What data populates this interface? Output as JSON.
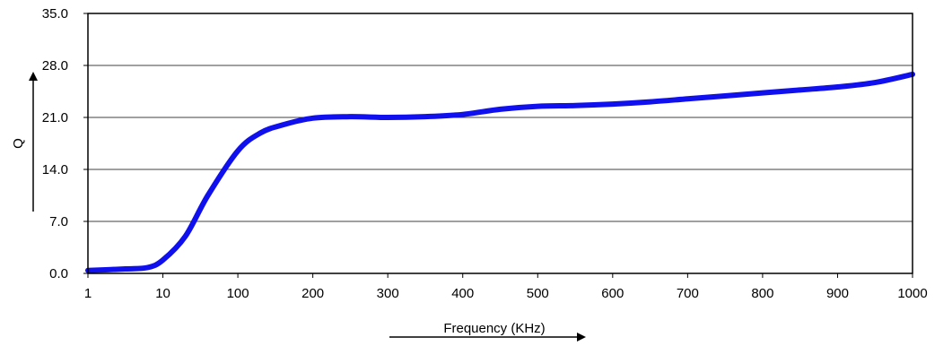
{
  "chart_data": {
    "type": "line",
    "title": "",
    "xlabel": "Frequency (KHz)",
    "ylabel": "Q",
    "x_categories": [
      "1",
      "10",
      "100",
      "200",
      "300",
      "400",
      "500",
      "600",
      "700",
      "800",
      "900",
      "1000"
    ],
    "y_ticks": [
      "0.0",
      "7.0",
      "14.0",
      "21.0",
      "28.0",
      "35.0"
    ],
    "ylim": [
      0,
      35
    ],
    "grid": "horizontal",
    "legend": "none",
    "series": [
      {
        "color": "#1010ee",
        "x_index": [
          0,
          0.5,
          0.8,
          1.0,
          1.3,
          1.6,
          2.0,
          2.3,
          2.6,
          3.0,
          3.5,
          4.0,
          4.5,
          5.0,
          5.5,
          6.0,
          6.5,
          7.0,
          7.5,
          8.0,
          8.5,
          9.0,
          9.5,
          10.0,
          10.5,
          11.0
        ],
        "values": [
          0.4,
          0.6,
          0.8,
          1.8,
          5.0,
          10.5,
          16.5,
          18.9,
          20.0,
          20.9,
          21.1,
          21.0,
          21.1,
          21.4,
          22.1,
          22.5,
          22.6,
          22.8,
          23.1,
          23.5,
          23.9,
          24.3,
          24.7,
          25.1,
          25.7,
          26.8
        ]
      }
    ]
  }
}
